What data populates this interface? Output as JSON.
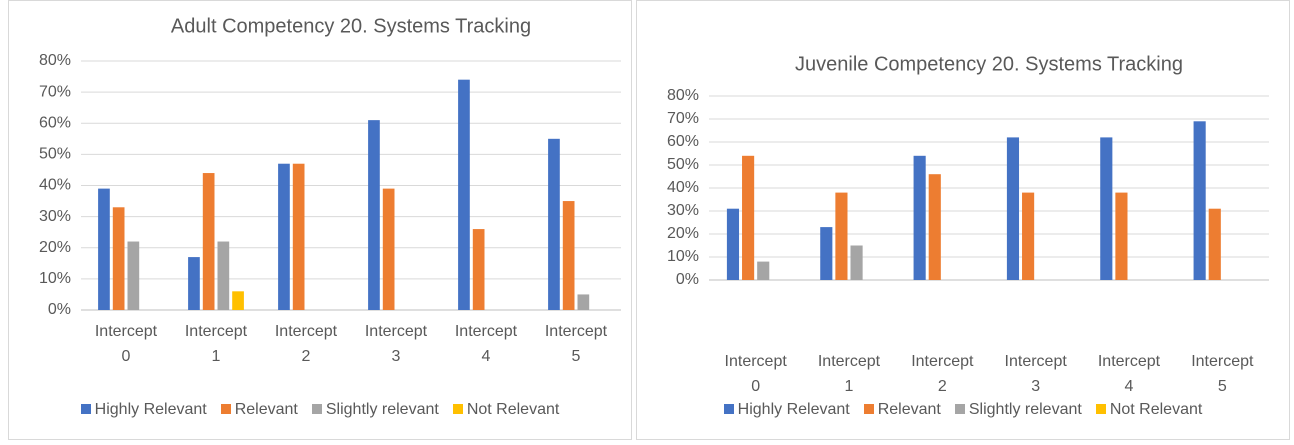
{
  "chart_data": [
    {
      "type": "bar",
      "title": "Adult Competency 20. Systems Tracking",
      "categories": [
        "Intercept 0",
        "Intercept 1",
        "Intercept 2",
        "Intercept 3",
        "Intercept 4",
        "Intercept 5"
      ],
      "series": [
        {
          "name": "Highly Relevant",
          "color": "#4472c4",
          "values": [
            39,
            17,
            47,
            61,
            74,
            55
          ]
        },
        {
          "name": "Relevant",
          "color": "#ed7d31",
          "values": [
            33,
            44,
            47,
            39,
            26,
            35
          ]
        },
        {
          "name": "Slightly relevant",
          "color": "#a5a5a5",
          "values": [
            22,
            22,
            0,
            0,
            0,
            5
          ]
        },
        {
          "name": "Not Relevant",
          "color": "#ffc000",
          "values": [
            0,
            6,
            0,
            0,
            0,
            0
          ]
        }
      ],
      "ylim": [
        0,
        80
      ],
      "yticks": [
        {
          "value": 0,
          "label": "0%"
        },
        {
          "value": 10,
          "label": "10%"
        },
        {
          "value": 20,
          "label": "20%"
        },
        {
          "value": 30,
          "label": "30%"
        },
        {
          "value": 40,
          "label": "40%"
        },
        {
          "value": 50,
          "label": "50%"
        },
        {
          "value": 60,
          "label": "60%"
        },
        {
          "value": 70,
          "label": "70%"
        },
        {
          "value": 80,
          "label": "80%"
        }
      ],
      "grid": true,
      "legend": "bottom"
    },
    {
      "type": "bar",
      "title": "Juvenile Competency 20. Systems Tracking",
      "categories": [
        "Intercept 0",
        "Intercept 1",
        "Intercept 2",
        "Intercept 3",
        "Intercept 4",
        "Intercept 5"
      ],
      "series": [
        {
          "name": "Highly Relevant",
          "color": "#4472c4",
          "values": [
            31,
            23,
            54,
            62,
            62,
            69
          ]
        },
        {
          "name": "Relevant",
          "color": "#ed7d31",
          "values": [
            54,
            38,
            46,
            38,
            38,
            31
          ]
        },
        {
          "name": "Slightly relevant",
          "color": "#a5a5a5",
          "values": [
            8,
            15,
            0,
            0,
            0,
            0
          ]
        },
        {
          "name": "Not Relevant",
          "color": "#ffc000",
          "values": [
            0,
            0,
            0,
            0,
            0,
            0
          ]
        }
      ],
      "ylim": [
        0,
        80
      ],
      "yticks": [
        {
          "value": 0,
          "label": "0%"
        },
        {
          "value": 10,
          "label": "10%"
        },
        {
          "value": 20,
          "label": "20%"
        },
        {
          "value": 30,
          "label": "30%"
        },
        {
          "value": 40,
          "label": "40%"
        },
        {
          "value": 50,
          "label": "50%"
        },
        {
          "value": 60,
          "label": "60%"
        },
        {
          "value": 70,
          "label": "70%"
        },
        {
          "value": 80,
          "label": "80%"
        }
      ],
      "grid": true,
      "legend": "bottom"
    }
  ]
}
